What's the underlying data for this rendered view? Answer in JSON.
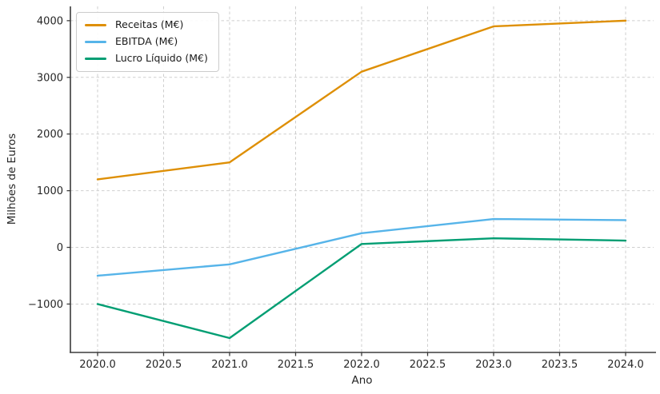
{
  "chart_data": {
    "type": "line",
    "title": "",
    "xlabel": "Ano",
    "ylabel": "Milhões de Euros",
    "x": [
      2020,
      2021,
      2022,
      2023,
      2024
    ],
    "series": [
      {
        "name": "Receitas (M€)",
        "color": "#de8f05",
        "values": [
          1200,
          1500,
          3100,
          3900,
          4000
        ]
      },
      {
        "name": "EBITDA (M€)",
        "color": "#56b4e9",
        "values": [
          -500,
          -300,
          250,
          500,
          480
        ]
      },
      {
        "name": "Lucro Líquido (M€)",
        "color": "#029e73",
        "values": [
          -1000,
          -1600,
          60,
          160,
          120
        ]
      }
    ],
    "xticks": {
      "values": [
        2020.0,
        2020.5,
        2021.0,
        2021.5,
        2022.0,
        2022.5,
        2023.0,
        2023.5,
        2024.0
      ],
      "labels": [
        "2020.0",
        "2020.5",
        "2021.0",
        "2021.5",
        "2022.0",
        "2022.5",
        "2023.0",
        "2023.5",
        "2024.0"
      ]
    },
    "yticks": {
      "values": [
        4000,
        3000,
        2000,
        1000,
        0,
        -1000
      ],
      "labels": [
        "4000",
        "3000",
        "2000",
        "1000",
        "0",
        "−1000"
      ]
    },
    "xlim": [
      2019.794,
      2024.212
    ],
    "ylim": [
      -1854,
      4252
    ],
    "grid": true,
    "grid_style": "dashed",
    "legend_position": "upper left"
  }
}
